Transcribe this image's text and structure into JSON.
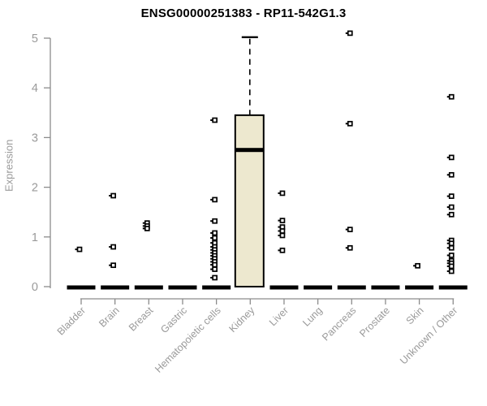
{
  "chart_data": {
    "type": "boxplot",
    "title": "ENSG00000251383 - RP11-542G1.3",
    "ylabel": "Expression",
    "xlabel": "",
    "ylim": [
      0,
      5
    ],
    "yticks": [
      0,
      1,
      2,
      3,
      4,
      5
    ],
    "grid": false,
    "legend": "none",
    "categories": [
      "Bladder",
      "Brain",
      "Breast",
      "Gastric",
      "Hematopoietic cells",
      "Kidney",
      "Liver",
      "Lung",
      "Pancreas",
      "Prostate",
      "Skin",
      "Unknown / Other"
    ],
    "series": [
      {
        "category": "Bladder",
        "q1": 0,
        "median": 0,
        "q3": 0,
        "whisker_low": 0,
        "whisker_high": 0,
        "outliers": [
          0.75
        ]
      },
      {
        "category": "Brain",
        "q1": 0,
        "median": 0,
        "q3": 0,
        "whisker_low": 0,
        "whisker_high": 0,
        "outliers": [
          1.83,
          0.8,
          0.43
        ]
      },
      {
        "category": "Breast",
        "q1": 0,
        "median": 0,
        "q3": 0,
        "whisker_low": 0,
        "whisker_high": 0,
        "outliers": [
          1.28,
          1.22,
          1.17
        ]
      },
      {
        "category": "Gastric",
        "q1": 0,
        "median": 0,
        "q3": 0,
        "whisker_low": 0,
        "whisker_high": 0,
        "outliers": []
      },
      {
        "category": "Hematopoietic cells",
        "q1": 0,
        "median": 0,
        "q3": 0,
        "whisker_low": 0,
        "whisker_high": 0,
        "outliers": [
          3.35,
          1.75,
          1.32,
          1.08,
          0.98,
          0.88,
          0.8,
          0.74,
          0.68,
          0.62,
          0.56,
          0.5,
          0.44,
          0.35,
          0.18
        ]
      },
      {
        "category": "Kidney",
        "q1": 0,
        "median": 2.75,
        "q3": 3.45,
        "whisker_low": 0,
        "whisker_high": 5.02,
        "outliers": []
      },
      {
        "category": "Liver",
        "q1": 0,
        "median": 0,
        "q3": 0,
        "whisker_low": 0,
        "whisker_high": 0,
        "outliers": [
          1.88,
          1.33,
          1.2,
          1.12,
          1.03,
          0.73
        ]
      },
      {
        "category": "Lung",
        "q1": 0,
        "median": 0,
        "q3": 0,
        "whisker_low": 0,
        "whisker_high": 0,
        "outliers": []
      },
      {
        "category": "Pancreas",
        "q1": 0,
        "median": 0,
        "q3": 0,
        "whisker_low": 0,
        "whisker_high": 0,
        "outliers": [
          5.1,
          3.28,
          1.15,
          0.78
        ]
      },
      {
        "category": "Prostate",
        "q1": 0,
        "median": 0,
        "q3": 0,
        "whisker_low": 0,
        "whisker_high": 0,
        "outliers": []
      },
      {
        "category": "Skin",
        "q1": 0,
        "median": 0,
        "q3": 0,
        "whisker_low": 0,
        "whisker_high": 0,
        "outliers": [
          0.42
        ]
      },
      {
        "category": "Unknown / Other",
        "q1": 0,
        "median": 0,
        "q3": 0,
        "whisker_low": 0,
        "whisker_high": 0,
        "outliers": [
          3.82,
          2.6,
          2.25,
          1.82,
          1.6,
          1.45,
          0.93,
          0.87,
          0.78,
          0.63,
          0.52,
          0.47,
          0.41,
          0.31
        ]
      }
    ]
  },
  "colors": {
    "box_fill": "#ede8cf",
    "box_border": "#000000",
    "axis": "#8c8c8c",
    "tick_label": "#9a9a9a",
    "title": "#000000",
    "marker_border": "#000000",
    "marker_fill": "#ffffff"
  }
}
